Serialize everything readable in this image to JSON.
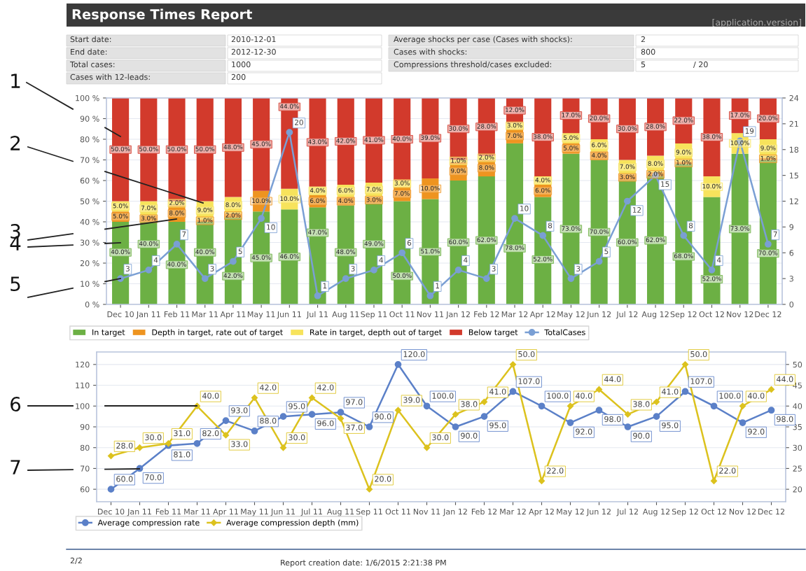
{
  "chart_data": [
    {
      "type": "bar",
      "stacked": true,
      "title": "Response Times Report",
      "categories": [
        "Dec 10",
        "Jan 11",
        "Feb 11",
        "Mar 11",
        "Apr 11",
        "May 11",
        "Jun 11",
        "Jul 11",
        "Aug 11",
        "Sep 11",
        "Oct 11",
        "Nov 11",
        "Jan 12",
        "Feb 12",
        "Mar 12",
        "Apr 12",
        "May 12",
        "Jun 12",
        "Jul 12",
        "Aug 12",
        "Sep 12",
        "Oct 12",
        "Nov 12",
        "Dec 12"
      ],
      "series": [
        {
          "name": "In target",
          "color": "#6cb044",
          "values": [
            40,
            40,
            40,
            40,
            42,
            45,
            46,
            47,
            48,
            49,
            50,
            51,
            60,
            62,
            78,
            52,
            73,
            70,
            60,
            62,
            68,
            52,
            73,
            70
          ],
          "value_labels": [
            "40.0%",
            "40.0%",
            "40.0%",
            "40.0%",
            "42.0%",
            "45.0%",
            "46.0%",
            "47.0%",
            "48.0%",
            "49.0%",
            "50.0%",
            "51.0%",
            "60.0%",
            "62.0%",
            "78.0%",
            "52.0%",
            "73.0%",
            "70.0%",
            "60.0%",
            "62.0%",
            "68.0%",
            "52.0%",
            "73.0%",
            "70.0%"
          ]
        },
        {
          "name": "Depth in target, rate out of target",
          "color": "#ee9420",
          "values": [
            5,
            3,
            8,
            1,
            2,
            10,
            null,
            6,
            4,
            3,
            7,
            10,
            9,
            8,
            7,
            6,
            5,
            4,
            3,
            2,
            1,
            null,
            null,
            1
          ],
          "value_labels": [
            "5.0%",
            "3.0%",
            "8.0%",
            "1.0%",
            "2.0%",
            "10.0%",
            null,
            "6.0%",
            "4.0%",
            "3.0%",
            "7.0%",
            "10.0%",
            "9.0%",
            "8.0%",
            "7.0%",
            "6.0%",
            "5.0%",
            "4.0%",
            "3.0%",
            "2.0%",
            "1.0%",
            null,
            null,
            "1.0%"
          ]
        },
        {
          "name": "Rate in target, depth out of target",
          "color": "#f7e35c",
          "values": [
            5,
            7,
            2,
            9,
            8,
            null,
            10,
            4,
            6,
            7,
            3,
            null,
            1,
            2,
            3,
            4,
            5,
            6,
            7,
            8,
            9,
            10,
            10,
            9
          ],
          "value_labels": [
            "5.0%",
            "7.0%",
            "2.0%",
            "9.0%",
            "8.0%",
            null,
            "10.0%",
            "4.0%",
            "6.0%",
            "7.0%",
            "3.0%",
            null,
            "1.0%",
            "2.0%",
            "3.0%",
            "4.0%",
            "5.0%",
            "6.0%",
            "7.0%",
            "8.0%",
            "9.0%",
            "10.0%",
            "10.0%",
            "9.0%"
          ]
        },
        {
          "name": "Below target",
          "color": "#d23a2c",
          "values": [
            50,
            50,
            50,
            50,
            48,
            45,
            44,
            43,
            42,
            41,
            40,
            39,
            30,
            28,
            12,
            38,
            17,
            20,
            30,
            28,
            22,
            38,
            17,
            20
          ],
          "value_labels": [
            "50.0%",
            "50.0%",
            "50.0%",
            "50.0%",
            "48.0%",
            "45.0%",
            "44.0%",
            "43.0%",
            "42.0%",
            "41.0%",
            "40.0%",
            "39.0%",
            "30.0%",
            "28.0%",
            "12.0%",
            "38.0%",
            "17.0%",
            "20.0%",
            "30.0%",
            "28.0%",
            "22.0%",
            "38.0%",
            "17.0%",
            "20.0%"
          ]
        },
        {
          "name": "TotalCases",
          "type": "line",
          "axis": "y2",
          "marker": "circle",
          "color": "#7a9fd4",
          "values": [
            3,
            4,
            7,
            3,
            5,
            10,
            20,
            1,
            3,
            4,
            6,
            1,
            4,
            3,
            10,
            8,
            3,
            5,
            12,
            15,
            8,
            4,
            19,
            7
          ],
          "value_labels": [
            "3",
            "4",
            "7",
            "3",
            "5",
            "10",
            "20",
            "1",
            "3",
            "4",
            "6",
            "1",
            "4",
            "3",
            "10",
            "8",
            "3",
            "5",
            "12",
            "15",
            "8",
            "4",
            "19",
            "7"
          ]
        }
      ],
      "ylim": [
        0,
        100
      ],
      "yticks": [
        {
          "value": 0,
          "label": "0 %"
        },
        {
          "value": 10,
          "label": "10 %"
        },
        {
          "value": 20,
          "label": "20 %"
        },
        {
          "value": 30,
          "label": "30 %"
        },
        {
          "value": 40,
          "label": "40 %"
        },
        {
          "value": 50,
          "label": "50 %"
        },
        {
          "value": 60,
          "label": "60 %"
        },
        {
          "value": 70,
          "label": "70 %"
        },
        {
          "value": 80,
          "label": "80 %"
        },
        {
          "value": 90,
          "label": "90 %"
        },
        {
          "value": 100,
          "label": "100 %"
        }
      ],
      "y2lim": [
        0,
        24
      ],
      "y2ticks": [
        0,
        3,
        6,
        9,
        12,
        15,
        18,
        21,
        24
      ],
      "grid": "y",
      "legend": "bottom",
      "annotations": [
        "[application.version]",
        "Start date:",
        "2010-12-01",
        "End date:",
        "2012-12-30",
        "Total cases:",
        "1000",
        "Cases with 12-leads:",
        "200",
        "Average shocks per case (Cases with shocks):",
        "2",
        "Cases with shocks:",
        "800",
        "Compressions threshold/cases excluded:",
        "5",
        "/ 20",
        "1",
        "2",
        "3",
        "4",
        "5"
      ]
    },
    {
      "type": "line",
      "categories": [
        "Dec 10",
        "Jan 11",
        "Feb 11",
        "Mar 11",
        "Apr 11",
        "May 11",
        "Jun 11",
        "Jul 11",
        "Aug 11",
        "Sep 11",
        "Oct 11",
        "Nov 11",
        "Jan 12",
        "Feb 12",
        "Mar 12",
        "Apr 12",
        "May 12",
        "Jun 12",
        "Jul 12",
        "Aug 12",
        "Sep 12",
        "Oct 12",
        "Nov 12",
        "Dec 12"
      ],
      "series": [
        {
          "name": "Average compression rate",
          "color": "#5b80c8",
          "marker": "circle",
          "values": [
            60,
            70,
            81,
            82,
            93,
            88,
            95,
            96,
            97,
            90,
            120,
            100,
            90,
            95,
            107,
            100,
            92,
            98,
            90,
            95,
            107,
            100,
            92,
            98
          ],
          "value_labels": [
            "60.0",
            "70.0",
            "81.0",
            "82.0",
            "93.0",
            "88.0",
            "95.0",
            "96.0",
            "97.0",
            "90.0",
            "120.0",
            "100.0",
            "90.0",
            "95.0",
            "107.0",
            "100.0",
            "92.0",
            "98.0",
            "90.0",
            "95.0",
            "107.0",
            "100.0",
            "92.0",
            "98.0"
          ]
        },
        {
          "name": "Average compression depth (mm)",
          "color": "#dcc21e",
          "marker": "diamond",
          "axis": "y2",
          "values": [
            28,
            30,
            31,
            40,
            33,
            42,
            30,
            42,
            37,
            20,
            39,
            30,
            38,
            41,
            50,
            22,
            40,
            44,
            38,
            41,
            50,
            22,
            40,
            44
          ],
          "value_labels": [
            "28.0",
            "30.0",
            "31.0",
            "40.0",
            "33.0",
            "42.0",
            "30.0",
            "42.0",
            "37.0",
            "20.0",
            "39.0",
            "30.0",
            "38.0",
            "41.0",
            "50.0",
            "22.0",
            "40.0",
            "44.0",
            "38.0",
            "41.0",
            "50.0",
            "22.0",
            "40.0",
            "44.0"
          ]
        }
      ],
      "ylim": [
        54,
        126
      ],
      "yticks": [
        60,
        70,
        80,
        90,
        100,
        110,
        120
      ],
      "y2lim": [
        17,
        53
      ],
      "y2ticks": [
        20,
        25,
        30,
        35,
        40,
        45,
        50
      ],
      "grid": "y",
      "legend": "bottom",
      "annotations": [
        "6",
        "7",
        "2/2",
        "Report creation date: 1/6/2015 2:21:38 PM"
      ]
    }
  ]
}
